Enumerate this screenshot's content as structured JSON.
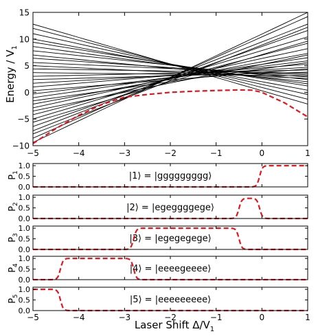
{
  "chart_data": [
    {
      "type": "line",
      "ylabel": "Energy / V",
      "ylabel_sub": "1",
      "xlim": [
        -5,
        1
      ],
      "ylim": [
        -10,
        15
      ],
      "xticks": [
        -5,
        -4,
        -3,
        -2,
        -1,
        0,
        1
      ],
      "xtick_labels": [
        "−5",
        "−4",
        "−3",
        "−2",
        "−1",
        "0",
        "1"
      ],
      "yticks": [
        -10,
        -5,
        0,
        5,
        10,
        15
      ],
      "ytick_labels": [
        "−10",
        "−5",
        "0",
        "5",
        "10",
        "15"
      ],
      "grid": false,
      "line_color": "#000000",
      "highlight_color": "#e8141b",
      "ground_state_energy": {
        "x": [
          -5,
          -4.5,
          -4,
          -3.5,
          -3,
          -2.5,
          -2,
          -1.5,
          -1,
          -0.5,
          -0.2,
          0,
          0.5,
          1
        ],
        "y": [
          -9.6,
          -6.8,
          -4.3,
          -2.3,
          -0.9,
          -0.4,
          0.0,
          0.2,
          0.35,
          0.45,
          0.4,
          0.0,
          -2.0,
          -4.6
        ]
      },
      "eigenenergy_lines": [
        {
          "y_at_x_minus5": 12.8,
          "y_at_x_1": -2.2
        },
        {
          "y_at_x_minus5": 12.0,
          "y_at_x_1": -1.3
        },
        {
          "y_at_x_minus5": 11.0,
          "y_at_x_1": -0.4
        },
        {
          "y_at_x_minus5": 10.0,
          "y_at_x_1": 0.4
        },
        {
          "y_at_x_minus5": 9.4,
          "y_at_x_1": 1.2
        },
        {
          "y_at_x_minus5": 8.6,
          "y_at_x_1": 1.6
        },
        {
          "y_at_x_minus5": 7.8,
          "y_at_x_1": 2.4
        },
        {
          "y_at_x_minus5": 7.0,
          "y_at_x_1": 2.0
        },
        {
          "y_at_x_minus5": 6.4,
          "y_at_x_1": 2.9
        },
        {
          "y_at_x_minus5": 5.6,
          "y_at_x_1": 3.3
        },
        {
          "y_at_x_minus5": 5.0,
          "y_at_x_1": 2.6
        },
        {
          "y_at_x_minus5": 4.4,
          "y_at_x_1": 3.6
        },
        {
          "y_at_x_minus5": 3.7,
          "y_at_x_1": 3.1
        },
        {
          "y_at_x_minus5": 3.0,
          "y_at_x_1": 4.2
        },
        {
          "y_at_x_minus5": 2.4,
          "y_at_x_1": 3.8
        },
        {
          "y_at_x_minus5": 1.7,
          "y_at_x_1": 4.7
        },
        {
          "y_at_x_minus5": 1.0,
          "y_at_x_1": 5.3
        },
        {
          "y_at_x_minus5": 0.3,
          "y_at_x_1": 4.4
        },
        {
          "y_at_x_minus5": -0.3,
          "y_at_x_1": 5.9
        },
        {
          "y_at_x_minus5": -1.0,
          "y_at_x_1": 6.5
        },
        {
          "y_at_x_minus5": -1.6,
          "y_at_x_1": 5.6
        },
        {
          "y_at_x_minus5": -2.2,
          "y_at_x_1": 7.3
        },
        {
          "y_at_x_minus5": -2.9,
          "y_at_x_1": 8.2
        },
        {
          "y_at_x_minus5": -3.5,
          "y_at_x_1": 7.0
        },
        {
          "y_at_x_minus5": -4.2,
          "y_at_x_1": 9.2
        },
        {
          "y_at_x_minus5": -5.0,
          "y_at_x_1": 10.4
        },
        {
          "y_at_x_minus5": -5.6,
          "y_at_x_1": 9.6
        },
        {
          "y_at_x_minus5": -6.4,
          "y_at_x_1": 11.6
        },
        {
          "y_at_x_minus5": -7.2,
          "y_at_x_1": 12.8
        },
        {
          "y_at_x_minus5": -7.8,
          "y_at_x_1": 12.2
        },
        {
          "y_at_x_minus5": -8.6,
          "y_at_x_1": 14.2
        },
        {
          "y_at_x_minus5": -9.4,
          "y_at_x_1": 15.0
        }
      ]
    },
    {
      "type": "line",
      "xlabel": "Laser Shift Δ/V",
      "xlabel_sub": "1",
      "xlim": [
        -5,
        1
      ],
      "xticks": [
        -5,
        -4,
        -3,
        -2,
        -1,
        0,
        1
      ],
      "xtick_labels": [
        "−5",
        "−4",
        "−3",
        "−2",
        "−1",
        "0",
        "1"
      ],
      "ylim": [
        0,
        1.1
      ],
      "yticks": [
        0,
        0.5,
        1
      ],
      "ytick_labels": [
        "0.0",
        "0.5",
        "1.0"
      ],
      "panels": [
        {
          "ylabel": "P",
          "ylabel_sub": "1",
          "state_label": "|1⟩ = |ggggggggg⟩",
          "on_from": -0.05,
          "on_to": 1.0,
          "level": 1.0
        },
        {
          "ylabel": "P",
          "ylabel_sub": "2",
          "state_label": "|2⟩ = |egeggggege⟩",
          "on_from": -0.5,
          "on_to": -0.05,
          "level": 0.95
        },
        {
          "ylabel": "P",
          "ylabel_sub": "3",
          "state_label": "|3⟩ = |egegegege⟩",
          "on_from": -2.8,
          "on_to": -0.5,
          "level": 1.0
        },
        {
          "ylabel": "P",
          "ylabel_sub": "4",
          "state_label": "|4⟩ = |eeeegeeee⟩",
          "on_from": -4.4,
          "on_to": -2.8,
          "level": 1.0
        },
        {
          "ylabel": "P",
          "ylabel_sub": "5",
          "state_label": "|5⟩ = |eeeeeeeee⟩",
          "on_from": -5.0,
          "on_to": -4.4,
          "level": 1.0
        }
      ],
      "series_color": "#e8141b"
    }
  ]
}
